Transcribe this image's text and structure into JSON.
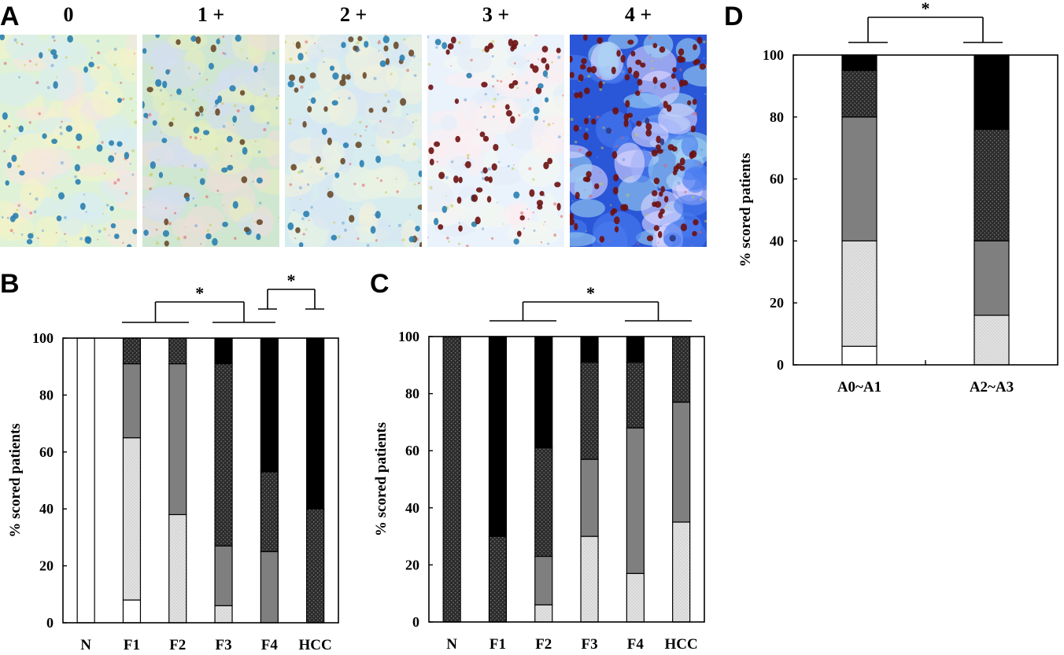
{
  "panels": {
    "a": "A",
    "b": "B",
    "c": "C",
    "d": "D"
  },
  "micrographs": [
    {
      "label": "0",
      "score": "0"
    },
    {
      "label": "1 +",
      "score": "1"
    },
    {
      "label": "2 +",
      "score": "2"
    },
    {
      "label": "3 +",
      "score": "3"
    },
    {
      "label": "4 +",
      "score": "4"
    }
  ],
  "colors": {
    "score_0": "#ffffff",
    "score_1": "#d8d8d8",
    "score_2": "#7f7f7f",
    "score_3": "#333333",
    "score_4": "#000000"
  },
  "chart_data": [
    {
      "panel": "B",
      "type": "bar",
      "stacked": true,
      "ylabel": "% scored patients",
      "ylim": [
        0,
        100
      ],
      "yticks": [
        0,
        20,
        40,
        60,
        80,
        100
      ],
      "categories": [
        "N",
        "F1",
        "F2",
        "F3",
        "F4",
        "HCC"
      ],
      "series": [
        {
          "score": "0",
          "values": [
            100,
            8,
            0,
            0,
            0,
            0
          ]
        },
        {
          "score": "1+",
          "values": [
            0,
            57,
            38,
            6,
            0,
            0
          ]
        },
        {
          "score": "2+",
          "values": [
            0,
            26,
            53,
            21,
            25,
            0
          ]
        },
        {
          "score": "3+",
          "values": [
            0,
            9,
            9,
            64,
            28,
            40
          ]
        },
        {
          "score": "4+",
          "values": [
            0,
            0,
            0,
            9,
            47,
            60
          ]
        }
      ],
      "significance": [
        {
          "groups": [
            [
              "F1",
              "F2"
            ],
            [
              "F3",
              "F4"
            ]
          ],
          "mark": "*"
        },
        {
          "groups": [
            [
              "F4"
            ],
            [
              "HCC"
            ]
          ],
          "mark": "*"
        }
      ]
    },
    {
      "panel": "C",
      "type": "bar",
      "stacked": true,
      "ylabel": "% scored patients",
      "ylim": [
        0,
        100
      ],
      "yticks": [
        0,
        20,
        40,
        60,
        80,
        100
      ],
      "categories": [
        "N",
        "F1",
        "F2",
        "F3",
        "F4",
        "HCC"
      ],
      "series": [
        {
          "score": "0",
          "values": [
            0,
            0,
            0,
            0,
            0,
            0
          ]
        },
        {
          "score": "1+",
          "values": [
            0,
            0,
            6,
            30,
            17,
            35
          ]
        },
        {
          "score": "2+",
          "values": [
            0,
            0,
            17,
            27,
            51,
            42
          ]
        },
        {
          "score": "3+",
          "values": [
            100,
            30,
            38,
            34,
            23,
            23
          ]
        },
        {
          "score": "4+",
          "values": [
            0,
            70,
            39,
            9,
            9,
            0
          ]
        }
      ],
      "significance": [
        {
          "groups": [
            [
              "F1",
              "F2"
            ],
            [
              "F4",
              "HCC"
            ]
          ],
          "mark": "*"
        }
      ]
    },
    {
      "panel": "D",
      "type": "bar",
      "stacked": true,
      "ylabel": "% scored patients",
      "ylim": [
        0,
        100
      ],
      "yticks": [
        0,
        20,
        40,
        60,
        80,
        100
      ],
      "categories": [
        "A0~A1",
        "A2~A3"
      ],
      "series": [
        {
          "score": "0",
          "values": [
            6,
            0
          ]
        },
        {
          "score": "1+",
          "values": [
            34,
            16
          ]
        },
        {
          "score": "2+",
          "values": [
            40,
            24
          ]
        },
        {
          "score": "3+",
          "values": [
            15,
            36
          ]
        },
        {
          "score": "4+",
          "values": [
            5,
            24
          ]
        }
      ],
      "significance": [
        {
          "groups": [
            [
              "A0~A1"
            ],
            [
              "A2~A3"
            ]
          ],
          "mark": "*"
        }
      ]
    }
  ]
}
